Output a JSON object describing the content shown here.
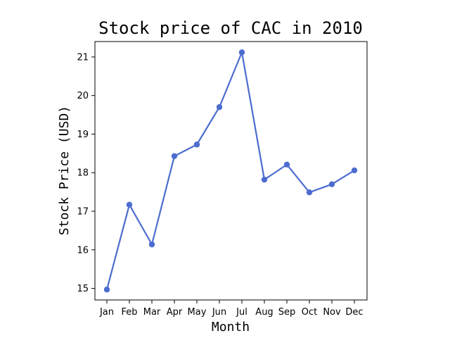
{
  "chart_data": {
    "type": "line",
    "title": "Stock price of CAC in 2010",
    "xlabel": "Month",
    "ylabel": "Stock Price (USD)",
    "categories": [
      "Jan",
      "Feb",
      "Mar",
      "Apr",
      "May",
      "Jun",
      "Jul",
      "Aug",
      "Sep",
      "Oct",
      "Nov",
      "Dec"
    ],
    "series": [
      {
        "values": [
          14.97,
          17.17,
          16.14,
          18.43,
          18.73,
          19.7,
          21.12,
          17.82,
          18.21,
          17.49,
          17.7,
          18.06
        ],
        "color": "#4c6ccf",
        "marker": "circle"
      }
    ],
    "ylim": [
      14.7,
      21.4
    ],
    "yticks": [
      15,
      16,
      17,
      18,
      19,
      20,
      21
    ],
    "grid": false,
    "legend": "none"
  }
}
